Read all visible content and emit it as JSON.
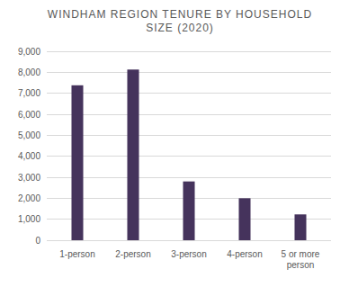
{
  "chart_data": {
    "type": "bar",
    "title": "WINDHAM REGION TENURE BY HOUSEHOLD SIZE (2020)",
    "categories": [
      "1-person",
      "2-person",
      "3-person",
      "4-person",
      "5 or more person"
    ],
    "values": [
      7380,
      8130,
      2800,
      2000,
      1230
    ],
    "color": "#45335c",
    "ylim": [
      0,
      9000
    ],
    "yticks": [
      0,
      {
        "value": 1000,
        "label": "1,000"
      },
      {
        "value": 2000,
        "label": "2,000"
      },
      {
        "value": 3000,
        "label": "3,000"
      },
      {
        "value": 4000,
        "label": "4,000"
      },
      {
        "value": 5000,
        "label": "5,000"
      },
      {
        "value": 6000,
        "label": "6,000"
      },
      {
        "value": 7000,
        "label": "7,000"
      },
      {
        "value": 8000,
        "label": "8,000"
      },
      {
        "value": 9000,
        "label": "9,000"
      }
    ],
    "grid": true
  }
}
